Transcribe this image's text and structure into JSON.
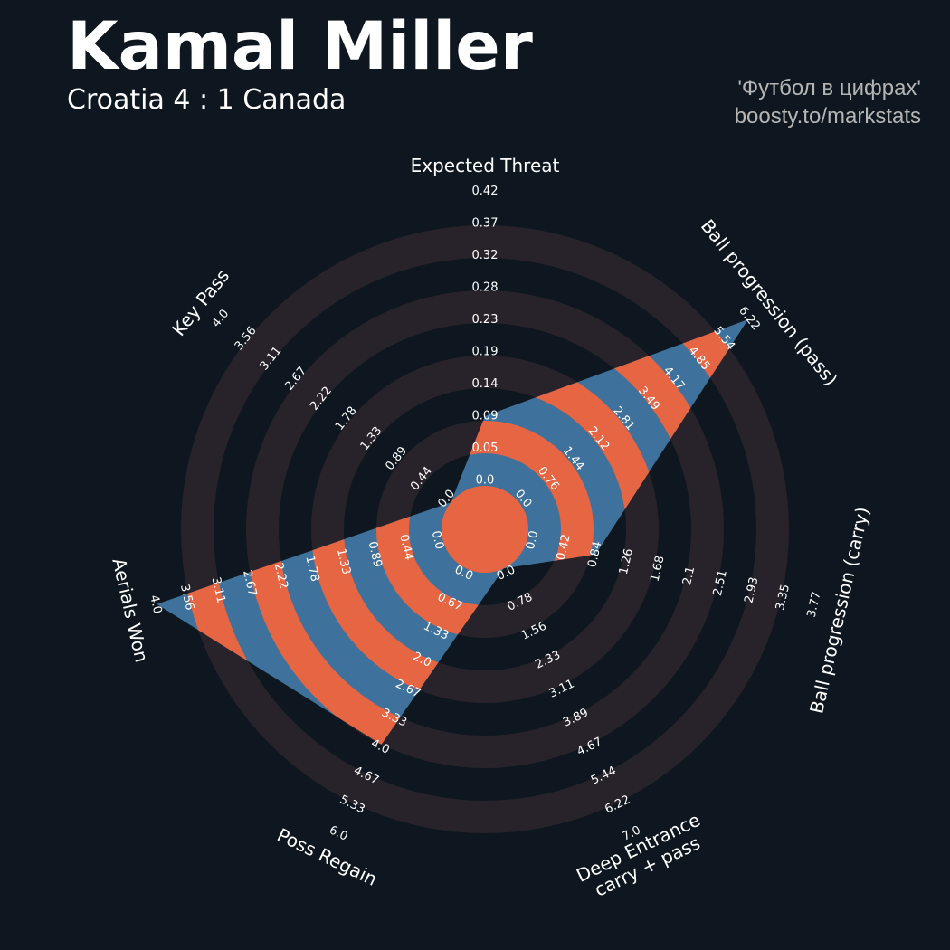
{
  "title": "Kamal Miller",
  "subtitle": "Croatia 4 : 1 Canada",
  "credit": {
    "line1": "'Футбол в цифрах'",
    "line2": "boosty.to/markstats"
  },
  "colors": {
    "background": "#0e171f",
    "ring_band": "#28232a",
    "polygon_blue": "#3e719b",
    "polygon_orange": "#e66542",
    "text": "#ffffff",
    "credit_text": "#b5b5b5"
  },
  "chart_data": {
    "type": "radar",
    "title": "Kamal Miller",
    "params": [
      {
        "name": "Expected Threat",
        "value": 0.1,
        "min": 0.0,
        "max": 0.42,
        "ticks": [
          "0.0",
          "0.05",
          "0.09",
          "0.14",
          "0.19",
          "0.23",
          "0.28",
          "0.32",
          "0.37",
          "0.42"
        ]
      },
      {
        "name": "Ball progression (pass)",
        "value": 6.22,
        "min": 0.0,
        "max": 6.22,
        "ticks": [
          "0.0",
          "0.76",
          "1.44",
          "2.12",
          "2.81",
          "3.49",
          "4.17",
          "4.85",
          "5.54",
          "6.22"
        ]
      },
      {
        "name": "Ball progression (carry)",
        "value": 0.9,
        "min": 0.0,
        "max": 3.77,
        "ticks": [
          "0.0",
          "0.42",
          "0.84",
          "1.26",
          "1.68",
          "2.1",
          "2.51",
          "2.93",
          "3.35",
          "3.77"
        ]
      },
      {
        "name": "Deep Entrance\ncarry + pass",
        "value": 0.0,
        "min": 0.0,
        "max": 7.0,
        "ticks": [
          "0.0",
          "0.78",
          "1.56",
          "2.33",
          "3.11",
          "3.89",
          "4.67",
          "5.44",
          "6.22",
          "7.0"
        ]
      },
      {
        "name": "Poss Regain",
        "value": 4.0,
        "min": 0.0,
        "max": 6.0,
        "ticks": [
          "0.0",
          "0.67",
          "1.33",
          "2.0",
          "2.67",
          "3.33",
          "4.0",
          "4.67",
          "5.33",
          "6.0"
        ]
      },
      {
        "name": "Aerials Won",
        "value": 4.0,
        "min": 0.0,
        "max": 4.0,
        "ticks": [
          "0.0",
          "0.44",
          "0.89",
          "1.33",
          "1.78",
          "2.22",
          "2.67",
          "3.11",
          "3.56",
          "4.0"
        ]
      },
      {
        "name": "Key Pass",
        "value": 0.0,
        "min": 0.0,
        "max": 4.0,
        "ticks": [
          "0.0",
          "0.44",
          "0.89",
          "1.33",
          "1.78",
          "2.22",
          "2.67",
          "3.11",
          "3.56",
          "4.0"
        ]
      }
    ]
  }
}
